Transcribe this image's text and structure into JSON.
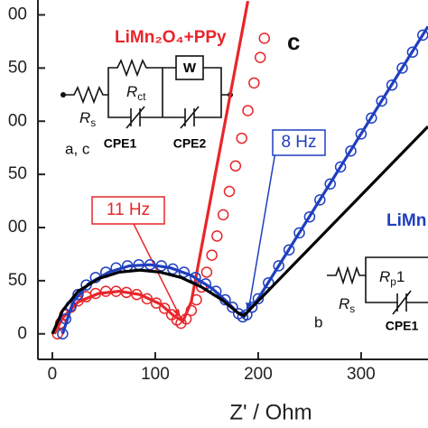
{
  "chart_data": {
    "type": "line",
    "x_label": "Z' / Ohm",
    "xlim": [
      -14,
      365
    ],
    "ylim": [
      -24,
      314
    ],
    "xticks": [
      0,
      100,
      200,
      300
    ],
    "yticks": [
      0,
      {
        "value": 50,
        "label": "50"
      },
      {
        "value": 100,
        "label": "00"
      },
      {
        "value": 150,
        "label": "50"
      },
      {
        "value": 200,
        "label": "00"
      },
      {
        "value": 250,
        "label": "50"
      },
      {
        "value": 300,
        "label": "00"
      }
    ],
    "series": [
      {
        "style": "markers",
        "color": "#e8262a",
        "x": [
          5,
          8,
          12,
          18,
          25,
          33,
          42,
          52,
          62,
          72,
          82,
          92,
          101,
          109,
          116,
          121,
          125,
          130,
          135,
          140,
          145,
          150,
          155,
          160,
          166,
          172,
          178,
          184,
          190,
          196,
          202,
          206
        ],
        "values": [
          0,
          10,
          18,
          25,
          31,
          35,
          38,
          40,
          40,
          39,
          37,
          33,
          29,
          24,
          18,
          13,
          10,
          14,
          22,
          32,
          44,
          58,
          74,
          92,
          112,
          134,
          158,
          184,
          210,
          236,
          260,
          278
        ]
      },
      {
        "style": "line",
        "color": "#e8262a",
        "x": [
          2,
          10,
          25,
          45,
          65,
          85,
          105,
          118,
          127,
          135,
          190
        ],
        "values": [
          0,
          15,
          30,
          38,
          40,
          37,
          28,
          17,
          12,
          30,
          313
        ]
      },
      {
        "style": "markers",
        "color": "#1f3fbf",
        "x": [
          10,
          13,
          18,
          25,
          33,
          42,
          52,
          62,
          73,
          84,
          95,
          106,
          117,
          128,
          139,
          149,
          159,
          168,
          175,
          181,
          185,
          189,
          194,
          200,
          210,
          220,
          230,
          240,
          250,
          260,
          270,
          280,
          290,
          300,
          310,
          320,
          330,
          340,
          350,
          360
        ],
        "values": [
          0,
          14,
          26,
          37,
          46,
          53,
          58,
          62,
          64,
          65,
          65,
          64,
          61,
          58,
          53,
          47,
          40,
          32,
          25,
          19,
          16,
          18,
          25,
          33,
          48,
          64,
          79,
          95,
          110,
          126,
          141,
          157,
          172,
          188,
          203,
          219,
          234,
          250,
          265,
          281
        ]
      },
      {
        "style": "line",
        "color": "#1f3fbf",
        "x": [
          10,
          20,
          35,
          55,
          75,
          95,
          115,
          135,
          155,
          170,
          180,
          186,
          200,
          365
        ],
        "values": [
          0,
          30,
          47,
          58,
          64,
          65,
          62,
          55,
          43,
          30,
          20,
          16,
          33,
          289
        ]
      },
      {
        "style": "line",
        "color": "#000000",
        "x": [
          0,
          10,
          25,
          45,
          65,
          85,
          105,
          125,
          145,
          165,
          180,
          186,
          365
        ],
        "values": [
          0,
          22,
          40,
          52,
          58,
          60,
          58,
          53,
          44,
          32,
          20,
          17,
          195
        ]
      }
    ],
    "annotations": {
      "material_a": "LiMn₂O₄+PPy",
      "label_c": "c",
      "label_ac": "a, c",
      "freq_8": "8 Hz",
      "freq_11": "11 Hz",
      "material_b": "LiMn",
      "label_b": "b"
    },
    "circuit_a": {
      "rs": {
        "symbol": "R",
        "sub": "s"
      },
      "rct": {
        "symbol": "R",
        "sub": "ct"
      },
      "w": "W",
      "cpe1": "CPE1",
      "cpe2": "CPE2"
    },
    "circuit_b": {
      "rs": {
        "symbol": "R",
        "sub": "s"
      },
      "rp": {
        "symbol": "R",
        "sub": "p",
        "suffix": "1"
      },
      "cpe1": "CPE1"
    }
  }
}
